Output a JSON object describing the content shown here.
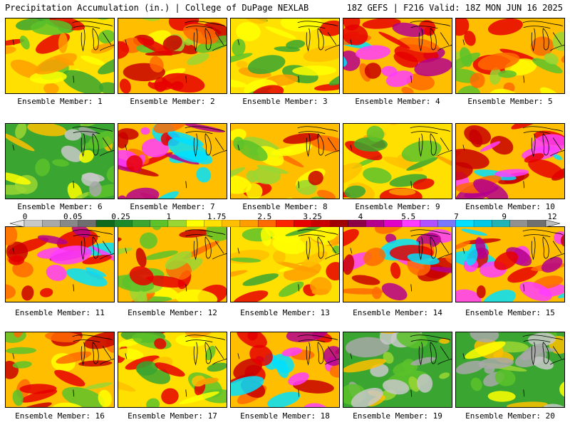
{
  "header": {
    "title": "Precipitation Accumulation (in.) | College of DuPage NEXLAB",
    "run_info": "18Z GEFS | F216 Valid: 18Z MON JUN 16 2025"
  },
  "colorbar": {
    "tick_labels": [
      "0",
      "0.05",
      "0.25",
      "1",
      "1.75",
      "2.5",
      "3.25",
      "4",
      "5.5",
      "7",
      "9",
      "12"
    ],
    "colors": [
      "#e8e8e8",
      "#c8c8c8",
      "#a8a8a8",
      "#888888",
      "#6e6e6e",
      "#0f6a1e",
      "#1c8a2a",
      "#3aa530",
      "#5cc22a",
      "#9ad632",
      "#ffff00",
      "#ffe000",
      "#ffbf00",
      "#ff9d00",
      "#ff6a00",
      "#ff2400",
      "#e60000",
      "#c80000",
      "#a00000",
      "#8c0046",
      "#b4008c",
      "#e000c8",
      "#ff3cff",
      "#b050ff",
      "#7878ff",
      "#00e0ff",
      "#00c8e6",
      "#22b4b4",
      "#909090",
      "#707070",
      "#bdbdbd"
    ]
  },
  "panels": [
    {
      "label": "Ensemble Member: 1",
      "scheme": 1
    },
    {
      "label": "Ensemble Member: 2",
      "scheme": 2
    },
    {
      "label": "Ensemble Member: 3",
      "scheme": 1
    },
    {
      "label": "Ensemble Member: 4",
      "scheme": 3
    },
    {
      "label": "Ensemble Member: 5",
      "scheme": 2
    },
    {
      "label": "Ensemble Member: 6",
      "scheme": 0
    },
    {
      "label": "Ensemble Member: 7",
      "scheme": 3
    },
    {
      "label": "Ensemble Member: 8",
      "scheme": 2
    },
    {
      "label": "Ensemble Member: 9",
      "scheme": 1
    },
    {
      "label": "Ensemble Member: 10",
      "scheme": 3
    },
    {
      "label": "Ensemble Member: 11",
      "scheme": 3
    },
    {
      "label": "Ensemble Member: 12",
      "scheme": 2
    },
    {
      "label": "Ensemble Member: 13",
      "scheme": 1
    },
    {
      "label": "Ensemble Member: 14",
      "scheme": 3
    },
    {
      "label": "Ensemble Member: 15",
      "scheme": 3
    },
    {
      "label": "Ensemble Member: 16",
      "scheme": 2
    },
    {
      "label": "Ensemble Member: 17",
      "scheme": 1
    },
    {
      "label": "Ensemble Member: 18",
      "scheme": 3
    },
    {
      "label": "Ensemble Member: 19",
      "scheme": 0
    },
    {
      "label": "Ensemble Member: 20",
      "scheme": 0
    }
  ]
}
